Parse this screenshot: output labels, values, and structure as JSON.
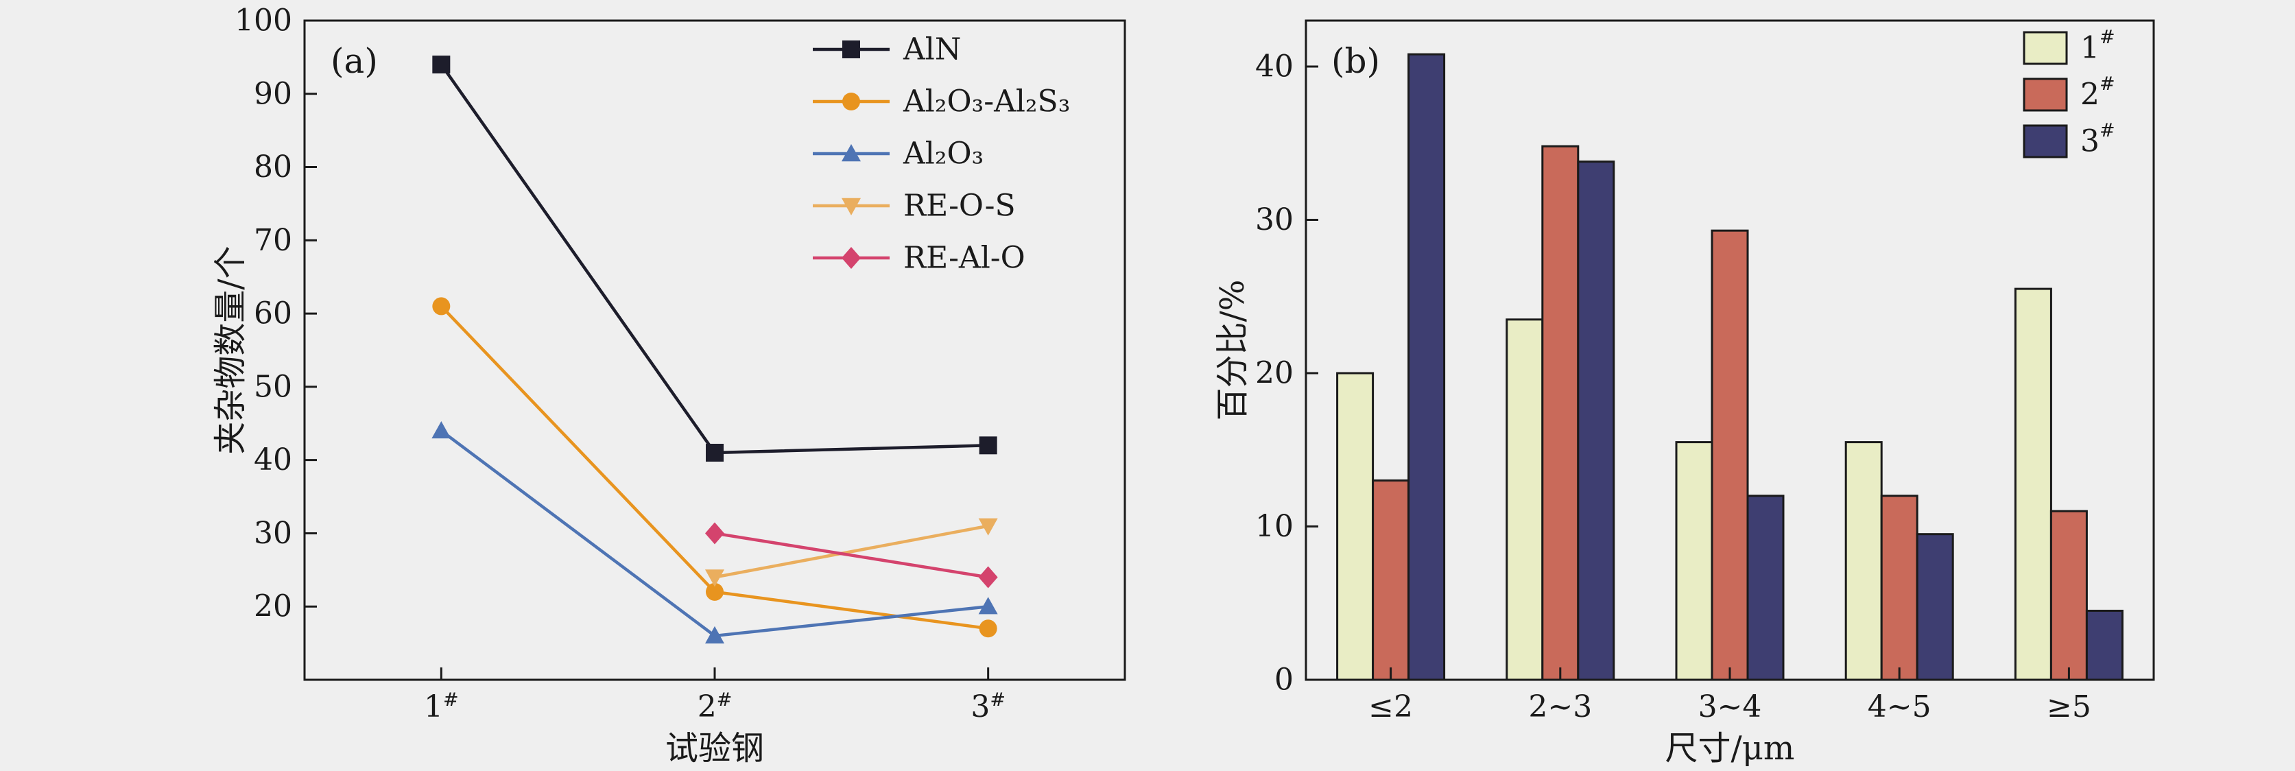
{
  "background_color": "#efefef",
  "text_color": "#1a1a1a",
  "chart_data": [
    {
      "type": "line",
      "panel_tag": "(a)",
      "title": "",
      "xlabel": "试验钢",
      "ylabel": "夹杂物数量/个",
      "categories": [
        "1#",
        "2#",
        "3#"
      ],
      "ylim": [
        10,
        100
      ],
      "yticks": [
        20,
        30,
        40,
        50,
        60,
        70,
        80,
        90,
        100
      ],
      "grid": false,
      "legend_position": "top-right-inside",
      "series": [
        {
          "name": "AlN",
          "marker": "square",
          "color": "#1d1d2b",
          "values": [
            94,
            41,
            42
          ]
        },
        {
          "name": "Al₂O₃-Al₂S₃",
          "marker": "circle",
          "color": "#e8941f",
          "values": [
            61,
            22,
            17
          ]
        },
        {
          "name": "Al₂O₃",
          "marker": "triangle-up",
          "color": "#4e74b4",
          "values": [
            44,
            16,
            20
          ]
        },
        {
          "name": "RE-O-S",
          "marker": "triangle-down",
          "color": "#eaae5e",
          "values": [
            null,
            24,
            31
          ]
        },
        {
          "name": "RE-Al-O",
          "marker": "diamond",
          "color": "#d4436d",
          "values": [
            null,
            30,
            24
          ]
        }
      ]
    },
    {
      "type": "bar",
      "panel_tag": "(b)",
      "title": "",
      "xlabel": "尺寸/μm",
      "ylabel": "百分比/%",
      "categories": [
        "≤2",
        "2~3",
        "3~4",
        "4~5",
        "≥5"
      ],
      "ylim": [
        0,
        43
      ],
      "yticks": [
        0,
        10,
        20,
        30,
        40
      ],
      "grid": false,
      "legend_position": "top-right-inside",
      "series": [
        {
          "name": "1#",
          "color": "#e9edc5",
          "values": [
            20,
            23.5,
            15.5,
            15.5,
            25.5
          ]
        },
        {
          "name": "2#",
          "color": "#c96a5a",
          "values": [
            13,
            34.8,
            29.3,
            12,
            11
          ]
        },
        {
          "name": "3#",
          "color": "#3e3e71",
          "values": [
            40.8,
            33.8,
            12,
            9.5,
            4.5
          ]
        }
      ]
    }
  ]
}
